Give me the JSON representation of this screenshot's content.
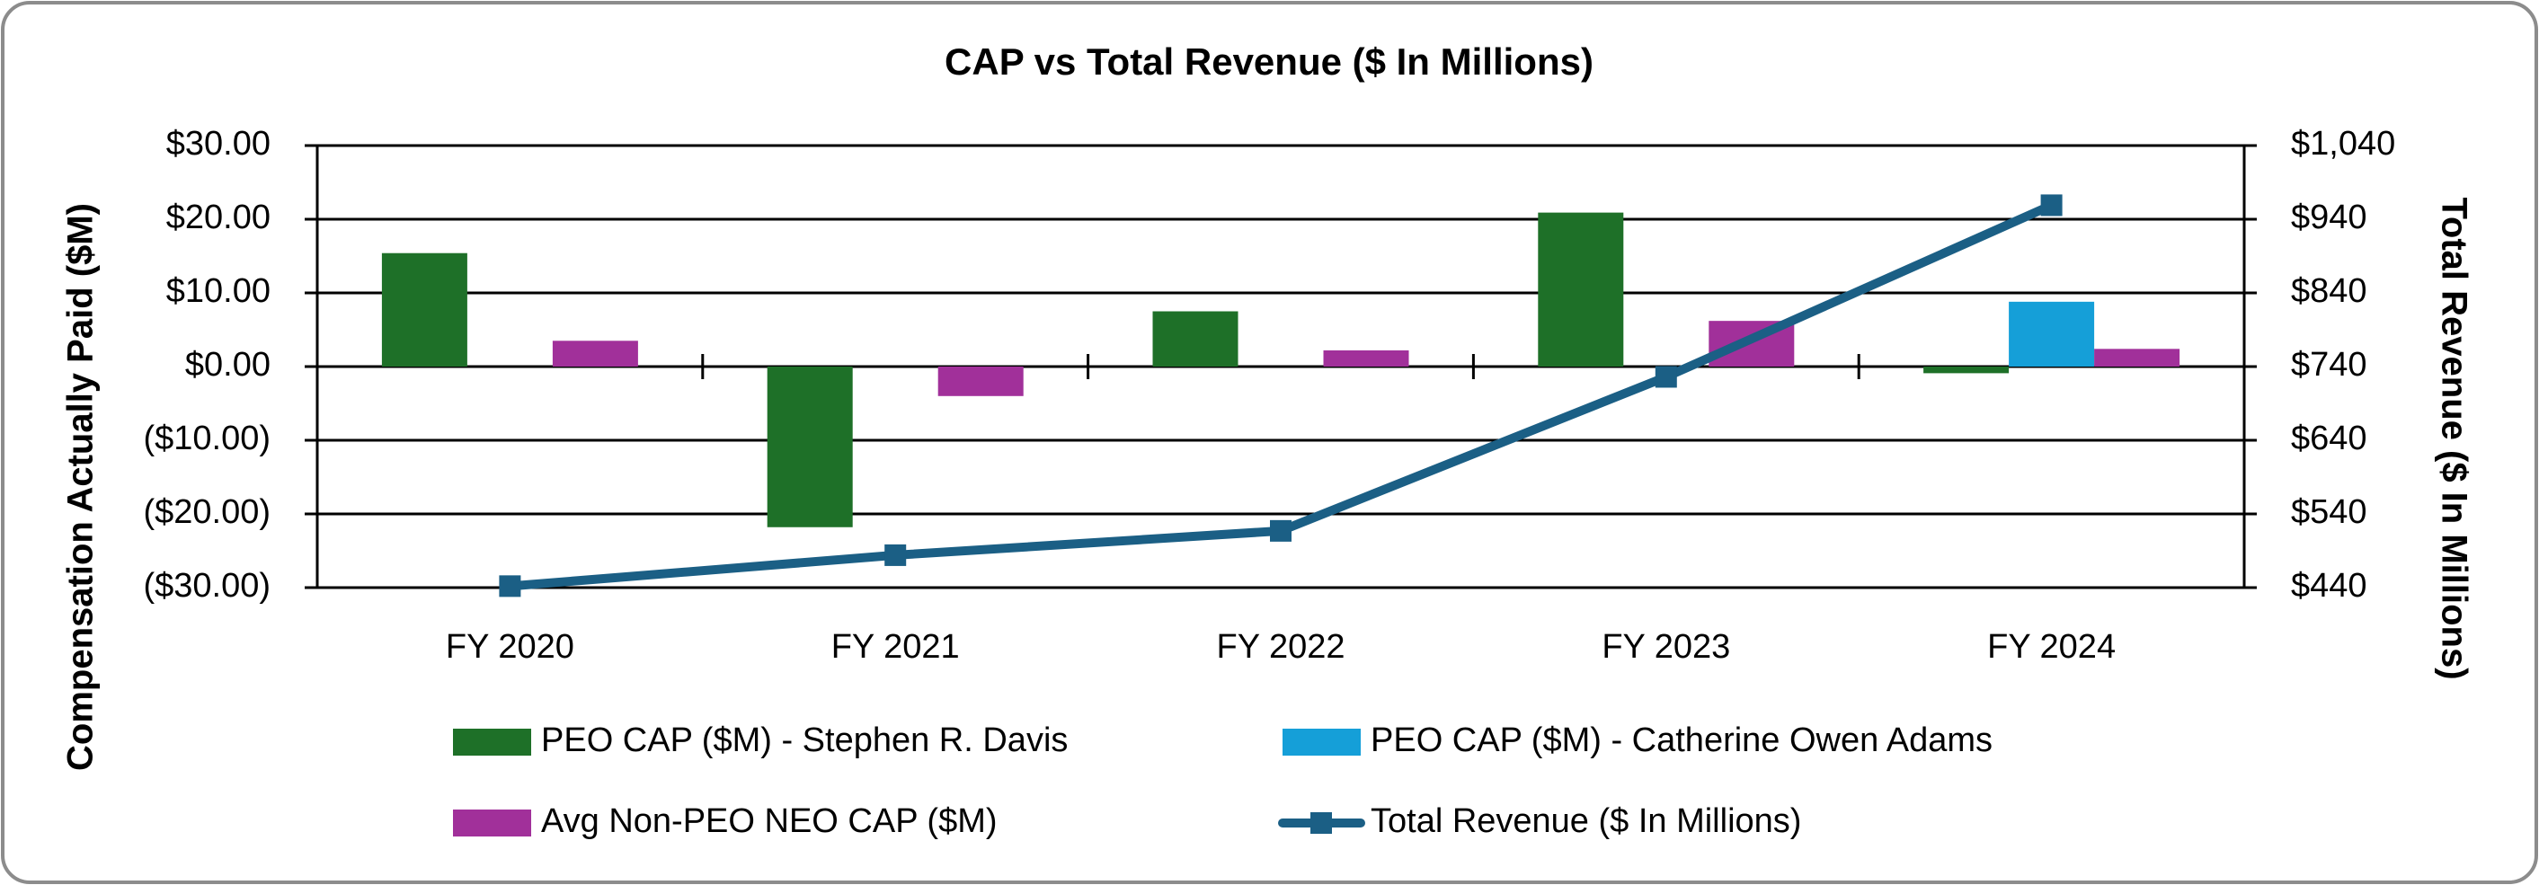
{
  "chart_data": {
    "type": "bar",
    "title": "CAP vs Total Revenue ($ In Millions)",
    "y_label": "Compensation Actually Paid ($M)",
    "y2_label": "Total Revenue ($ In Millions)",
    "categories": [
      "FY 2020",
      "FY 2021",
      "FY 2022",
      "FY 2023",
      "FY 2024"
    ],
    "series": [
      {
        "name": "PEO CAP ($M) - Stephen R. Davis",
        "type": "bar",
        "color": "#1e7028",
        "values": [
          15.4,
          -21.8,
          7.5,
          20.9,
          -0.9
        ]
      },
      {
        "name": "PEO CAP ($M) - Catherine Owen Adams",
        "type": "bar",
        "color": "#159fd8",
        "values": [
          null,
          null,
          null,
          null,
          8.8
        ]
      },
      {
        "name": "Avg Non-PEO NEO CAP ($M)",
        "type": "bar",
        "color": "#a1309a",
        "values": [
          3.5,
          -4.0,
          2.2,
          6.2,
          2.4
        ]
      },
      {
        "name": "Total Revenue ($ In Millions)",
        "type": "line",
        "axis": "y2",
        "color": "#1b5f85",
        "values": [
          442,
          484,
          517,
          726,
          959
        ]
      }
    ],
    "ylim": [
      -30,
      30
    ],
    "yticks": [
      {
        "value": 30,
        "label": "$30.00"
      },
      {
        "value": 20,
        "label": "$20.00"
      },
      {
        "value": 10,
        "label": "$10.00"
      },
      {
        "value": 0,
        "label": "$0.00"
      },
      {
        "value": -10,
        "label": "($10.00)"
      },
      {
        "value": -20,
        "label": "($20.00)"
      },
      {
        "value": -30,
        "label": "($30.00)"
      }
    ],
    "y2lim": [
      440,
      1040
    ],
    "y2ticks": [
      {
        "value": 1040,
        "label": "$1,040"
      },
      {
        "value": 940,
        "label": "$940"
      },
      {
        "value": 840,
        "label": "$840"
      },
      {
        "value": 740,
        "label": "$740"
      },
      {
        "value": 640,
        "label": "$640"
      },
      {
        "value": 540,
        "label": "$540"
      },
      {
        "value": 440,
        "label": "$440"
      }
    ],
    "grid": true
  }
}
